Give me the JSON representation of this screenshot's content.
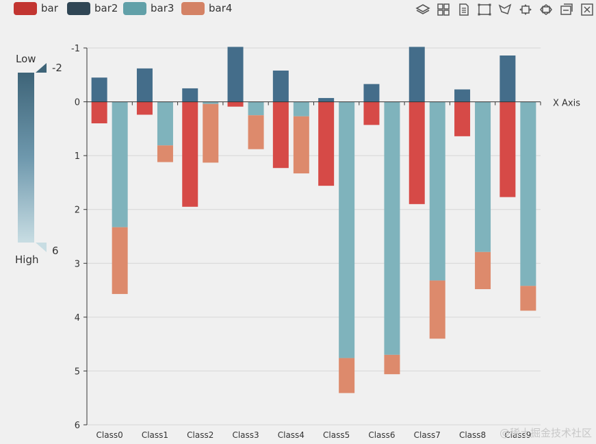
{
  "legend": {
    "items": [
      {
        "label": "bar",
        "color": "#c23531"
      },
      {
        "label": "bar2",
        "color": "#2f4554"
      },
      {
        "label": "bar3",
        "color": "#61a0a8"
      },
      {
        "label": "bar4",
        "color": "#d48265"
      }
    ]
  },
  "toolbox": {
    "icons": [
      "layers-icon",
      "grid-icon",
      "data-view-icon",
      "rect-select-icon",
      "lasso-select-icon",
      "zoom-icon",
      "zoom-reset-icon",
      "restore-icon",
      "save-icon"
    ]
  },
  "visual_map": {
    "low_label": "Low",
    "high_label": "High",
    "min_text": "-2",
    "max_text": "6",
    "gradient_top": "#3e6478",
    "gradient_bottom": "#c8dde3"
  },
  "watermark": "@稀土掘金技术社区",
  "chart_data": {
    "type": "bar",
    "title": "",
    "xlabel": "X Axis",
    "ylabel": "",
    "ylim": [
      -1,
      6
    ],
    "y_inverse": true,
    "y_ticks": [
      -1,
      0,
      1,
      2,
      3,
      4,
      5,
      6
    ],
    "categories": [
      "Class0",
      "Class1",
      "Class2",
      "Class3",
      "Class4",
      "Class5",
      "Class6",
      "Class7",
      "Class8",
      "Class9"
    ],
    "stacks": [
      {
        "name": "one",
        "series": [
          "bar",
          "bar2"
        ]
      },
      {
        "name": "two",
        "series": [
          "bar3",
          "bar4"
        ]
      }
    ],
    "series": [
      {
        "name": "bar",
        "stack": "one",
        "color": "#d64a47",
        "values": [
          0.4,
          0.24,
          1.95,
          0.09,
          1.23,
          1.56,
          0.43,
          1.9,
          0.64,
          1.77
        ]
      },
      {
        "name": "bar2",
        "stack": "one",
        "color": "#446d8a",
        "values": [
          -0.45,
          -0.62,
          -0.25,
          -1.02,
          -0.58,
          -0.07,
          -0.33,
          -1.02,
          -0.23,
          -0.86
        ]
      },
      {
        "name": "bar3",
        "stack": "two",
        "color": "#7fb3bc",
        "values": [
          2.33,
          0.81,
          0.04,
          0.25,
          0.27,
          4.76,
          4.7,
          3.32,
          2.79,
          3.42
        ]
      },
      {
        "name": "bar4",
        "stack": "two",
        "color": "#dd8a6c",
        "values": [
          1.24,
          0.31,
          1.09,
          0.63,
          1.06,
          0.65,
          0.36,
          1.08,
          0.69,
          0.46
        ]
      }
    ]
  }
}
